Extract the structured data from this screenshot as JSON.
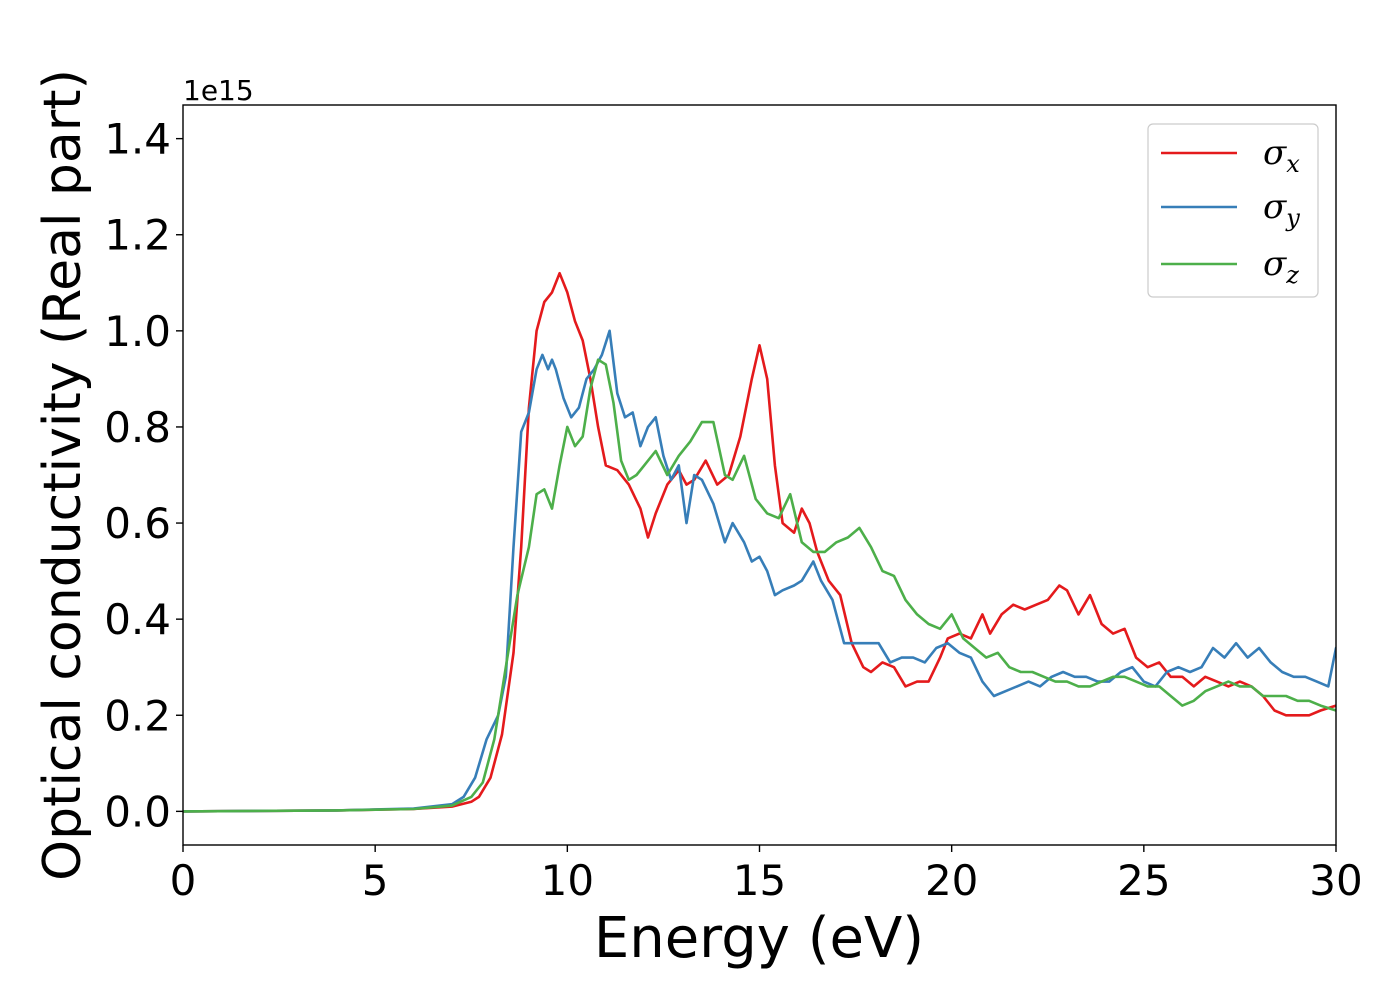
{
  "chart_data": {
    "type": "line",
    "xlabel": "Energy (eV)",
    "ylabel": "Optical conductivity (Real part)",
    "y_offset_label": "1e15",
    "xlim": [
      0,
      30
    ],
    "ylim": [
      -0.07,
      1.47
    ],
    "xticks": [
      0,
      5,
      10,
      15,
      20,
      25,
      30
    ],
    "xtick_labels": [
      "0",
      "5",
      "10",
      "15",
      "20",
      "25",
      "30"
    ],
    "yticks": [
      0.0,
      0.2,
      0.4,
      0.6,
      0.8,
      1.0,
      1.2,
      1.4
    ],
    "ytick_labels": [
      "0.0",
      "0.2",
      "0.4",
      "0.6",
      "0.8",
      "1.0",
      "1.2",
      "1.4"
    ],
    "grid": false,
    "legend_position": "top-right",
    "series": [
      {
        "name": "σx",
        "symbol": "σ",
        "subscript": "x",
        "color": "#e41a1c",
        "x": [
          0,
          4,
          6,
          7,
          7.5,
          7.7,
          8,
          8.3,
          8.6,
          8.8,
          9.0,
          9.2,
          9.4,
          9.6,
          9.8,
          10.0,
          10.2,
          10.4,
          10.6,
          10.8,
          11.0,
          11.3,
          11.6,
          11.9,
          12.1,
          12.3,
          12.6,
          12.9,
          13.1,
          13.3,
          13.6,
          13.9,
          14.2,
          14.5,
          14.8,
          15.0,
          15.2,
          15.4,
          15.6,
          15.9,
          16.1,
          16.3,
          16.5,
          16.8,
          17.1,
          17.4,
          17.7,
          17.9,
          18.2,
          18.5,
          18.8,
          19.1,
          19.4,
          19.7,
          19.9,
          20.2,
          20.5,
          20.8,
          21.0,
          21.3,
          21.6,
          21.9,
          22.2,
          22.5,
          22.8,
          23.0,
          23.3,
          23.6,
          23.9,
          24.2,
          24.5,
          24.8,
          25.1,
          25.4,
          25.7,
          26.0,
          26.3,
          26.6,
          26.9,
          27.2,
          27.5,
          27.8,
          28.1,
          28.4,
          28.7,
          29.0,
          29.3,
          29.6,
          30.0
        ],
        "y": [
          0.0,
          0.002,
          0.005,
          0.01,
          0.02,
          0.03,
          0.07,
          0.16,
          0.33,
          0.55,
          0.84,
          1.0,
          1.06,
          1.08,
          1.12,
          1.08,
          1.02,
          0.98,
          0.9,
          0.8,
          0.72,
          0.71,
          0.68,
          0.63,
          0.57,
          0.62,
          0.68,
          0.71,
          0.68,
          0.69,
          0.73,
          0.68,
          0.7,
          0.78,
          0.9,
          0.97,
          0.9,
          0.72,
          0.6,
          0.58,
          0.63,
          0.6,
          0.54,
          0.48,
          0.45,
          0.35,
          0.3,
          0.29,
          0.31,
          0.3,
          0.26,
          0.27,
          0.27,
          0.32,
          0.36,
          0.37,
          0.36,
          0.41,
          0.37,
          0.41,
          0.43,
          0.42,
          0.43,
          0.44,
          0.47,
          0.46,
          0.41,
          0.45,
          0.39,
          0.37,
          0.38,
          0.32,
          0.3,
          0.31,
          0.28,
          0.28,
          0.26,
          0.28,
          0.27,
          0.26,
          0.27,
          0.26,
          0.24,
          0.21,
          0.2,
          0.2,
          0.2,
          0.21,
          0.22
        ]
      },
      {
        "name": "σy",
        "symbol": "σ",
        "subscript": "y",
        "color": "#377eb8",
        "x": [
          0,
          4,
          6,
          7,
          7.3,
          7.6,
          7.9,
          8.2,
          8.4,
          8.6,
          8.8,
          9.0,
          9.2,
          9.35,
          9.5,
          9.6,
          9.7,
          9.9,
          10.1,
          10.3,
          10.5,
          10.7,
          10.9,
          11.1,
          11.3,
          11.5,
          11.7,
          11.9,
          12.1,
          12.3,
          12.5,
          12.7,
          12.9,
          13.1,
          13.3,
          13.5,
          13.8,
          14.1,
          14.3,
          14.6,
          14.8,
          15.0,
          15.2,
          15.4,
          15.6,
          15.9,
          16.1,
          16.4,
          16.6,
          16.9,
          17.2,
          17.5,
          17.8,
          18.1,
          18.4,
          18.7,
          19.0,
          19.3,
          19.6,
          19.9,
          20.2,
          20.5,
          20.8,
          21.1,
          21.4,
          21.7,
          22.0,
          22.3,
          22.6,
          22.9,
          23.2,
          23.5,
          23.8,
          24.1,
          24.4,
          24.7,
          25.0,
          25.3,
          25.6,
          25.9,
          26.2,
          26.5,
          26.8,
          27.1,
          27.4,
          27.7,
          28.0,
          28.3,
          28.6,
          28.9,
          29.2,
          29.5,
          29.8,
          30.0
        ],
        "y": [
          0.0,
          0.002,
          0.006,
          0.015,
          0.03,
          0.07,
          0.15,
          0.2,
          0.28,
          0.55,
          0.79,
          0.83,
          0.92,
          0.95,
          0.92,
          0.94,
          0.92,
          0.86,
          0.82,
          0.84,
          0.9,
          0.92,
          0.95,
          1.0,
          0.87,
          0.82,
          0.83,
          0.76,
          0.8,
          0.82,
          0.74,
          0.69,
          0.72,
          0.6,
          0.7,
          0.69,
          0.64,
          0.56,
          0.6,
          0.56,
          0.52,
          0.53,
          0.5,
          0.45,
          0.46,
          0.47,
          0.48,
          0.52,
          0.48,
          0.44,
          0.35,
          0.35,
          0.35,
          0.35,
          0.31,
          0.32,
          0.32,
          0.31,
          0.34,
          0.35,
          0.33,
          0.32,
          0.27,
          0.24,
          0.25,
          0.26,
          0.27,
          0.26,
          0.28,
          0.29,
          0.28,
          0.28,
          0.27,
          0.27,
          0.29,
          0.3,
          0.27,
          0.26,
          0.29,
          0.3,
          0.29,
          0.3,
          0.34,
          0.32,
          0.35,
          0.32,
          0.34,
          0.31,
          0.29,
          0.28,
          0.28,
          0.27,
          0.26,
          0.34
        ]
      },
      {
        "name": "σz",
        "symbol": "σ",
        "subscript": "z",
        "color": "#4daf4a",
        "x": [
          0,
          4,
          6,
          7,
          7.5,
          7.8,
          8.1,
          8.4,
          8.7,
          9.0,
          9.2,
          9.4,
          9.6,
          9.8,
          10.0,
          10.2,
          10.4,
          10.6,
          10.8,
          11.0,
          11.2,
          11.4,
          11.6,
          11.8,
          12.0,
          12.3,
          12.6,
          12.9,
          13.2,
          13.5,
          13.8,
          14.1,
          14.3,
          14.6,
          14.9,
          15.2,
          15.5,
          15.8,
          16.1,
          16.4,
          16.7,
          17.0,
          17.3,
          17.6,
          17.9,
          18.2,
          18.5,
          18.8,
          19.1,
          19.4,
          19.7,
          20.0,
          20.3,
          20.6,
          20.9,
          21.2,
          21.5,
          21.8,
          22.1,
          22.4,
          22.7,
          23.0,
          23.3,
          23.6,
          23.9,
          24.2,
          24.5,
          24.8,
          25.1,
          25.4,
          25.7,
          26.0,
          26.3,
          26.6,
          26.9,
          27.2,
          27.5,
          27.8,
          28.1,
          28.4,
          28.7,
          29.0,
          29.3,
          29.6,
          30.0
        ],
        "y": [
          0.0,
          0.002,
          0.005,
          0.012,
          0.03,
          0.06,
          0.15,
          0.3,
          0.45,
          0.55,
          0.66,
          0.67,
          0.63,
          0.72,
          0.8,
          0.76,
          0.78,
          0.88,
          0.94,
          0.93,
          0.85,
          0.73,
          0.69,
          0.7,
          0.72,
          0.75,
          0.7,
          0.74,
          0.77,
          0.81,
          0.81,
          0.7,
          0.69,
          0.74,
          0.65,
          0.62,
          0.61,
          0.66,
          0.56,
          0.54,
          0.54,
          0.56,
          0.57,
          0.59,
          0.55,
          0.5,
          0.49,
          0.44,
          0.41,
          0.39,
          0.38,
          0.41,
          0.36,
          0.34,
          0.32,
          0.33,
          0.3,
          0.29,
          0.29,
          0.28,
          0.27,
          0.27,
          0.26,
          0.26,
          0.27,
          0.28,
          0.28,
          0.27,
          0.26,
          0.26,
          0.24,
          0.22,
          0.23,
          0.25,
          0.26,
          0.27,
          0.26,
          0.26,
          0.24,
          0.24,
          0.24,
          0.23,
          0.23,
          0.22,
          0.21
        ]
      }
    ]
  }
}
